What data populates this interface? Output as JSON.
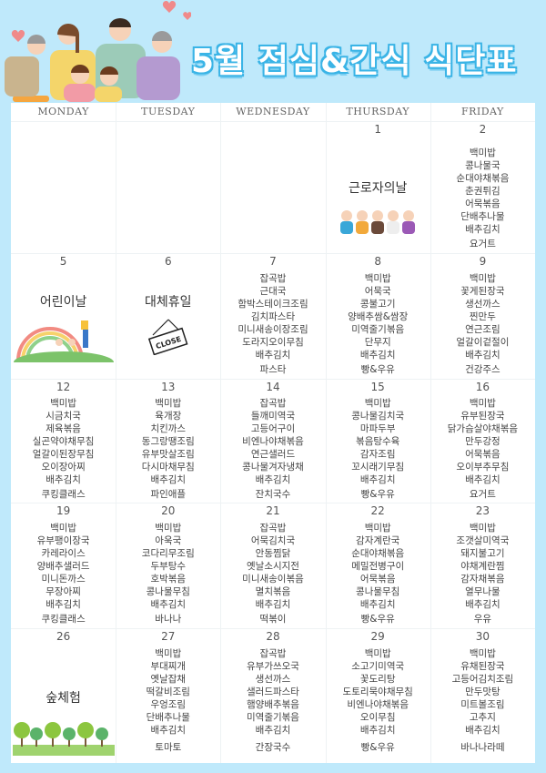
{
  "header": {
    "title": "5월 점심&간식 식단표"
  },
  "weekdays": [
    "MONDAY",
    "TUESDAY",
    "WEDNESDAY",
    "THURSDAY",
    "FRIDAY"
  ],
  "weeks": [
    {
      "days": [
        {
          "date": "",
          "menu": [],
          "snack": ""
        },
        {
          "date": "",
          "menu": [],
          "snack": ""
        },
        {
          "date": "",
          "menu": [],
          "snack": ""
        },
        {
          "date": "1",
          "holiday": "근로자의날",
          "illustration": "workers-icon"
        },
        {
          "date": "2",
          "menu": [
            "백미밥",
            "콩나물국",
            "순대야채볶음",
            "춘권튀김",
            "어묵볶음",
            "단배추나물",
            "배추김치"
          ],
          "snack": "요거트"
        }
      ]
    },
    {
      "days": [
        {
          "date": "5",
          "holiday": "어린이날",
          "illustration": "children-rainbow-icon"
        },
        {
          "date": "6",
          "holiday": "대체휴일",
          "illustration": "close-sign-icon",
          "sign_text": "CLOSE"
        },
        {
          "date": "7",
          "menu": [
            "잡곡밥",
            "근대국",
            "함박스테이크조림",
            "김치파스타",
            "미니새송이장조림",
            "도라지오이무침",
            "배추김치"
          ],
          "snack": "파스타"
        },
        {
          "date": "8",
          "menu": [
            "백미밥",
            "어묵국",
            "콩불고기",
            "양배추쌈&쌈장",
            "미역줄기볶음",
            "단무지",
            "배추김치"
          ],
          "snack": "빵&우유"
        },
        {
          "date": "9",
          "menu": [
            "백미밥",
            "꽃게된장국",
            "생선까스",
            "찐만두",
            "연근조림",
            "얼갈이겉절이",
            "배추김치"
          ],
          "snack": "건강주스"
        }
      ]
    },
    {
      "days": [
        {
          "date": "12",
          "menu": [
            "백미밥",
            "시금치국",
            "제육볶음",
            "실곤약야채무침",
            "얼갈이된장무침",
            "오이장아찌",
            "배추김치"
          ],
          "snack": "쿠킹클래스"
        },
        {
          "date": "13",
          "menu": [
            "백미밥",
            "육개장",
            "치킨까스",
            "동그랑땡조림",
            "유부맛살조림",
            "다시마채무침",
            "배추김치"
          ],
          "snack": "파인애플"
        },
        {
          "date": "14",
          "menu": [
            "잡곡밥",
            "들깨미역국",
            "고등어구이",
            "비엔나야채볶음",
            "연근샐러드",
            "콩나물겨자냉채",
            "배추김치"
          ],
          "snack": "잔치국수"
        },
        {
          "date": "15",
          "menu": [
            "백미밥",
            "콩나물김치국",
            "마파두부",
            "볶음탕수육",
            "감자조림",
            "꼬시래기무침",
            "배추김치"
          ],
          "snack": "빵&우유"
        },
        {
          "date": "16",
          "menu": [
            "백미밥",
            "유부된장국",
            "닭가슴살야채볶음",
            "만두강정",
            "어묵볶음",
            "오이부추무침",
            "배추김치"
          ],
          "snack": "요거트"
        }
      ]
    },
    {
      "days": [
        {
          "date": "19",
          "menu": [
            "백미밥",
            "유부팽이장국",
            "카레라이스",
            "양배추샐러드",
            "미니돈까스",
            "무장아찌",
            "배추김치"
          ],
          "snack": "쿠킹클래스"
        },
        {
          "date": "20",
          "menu": [
            "백미밥",
            "아욱국",
            "코다리무조림",
            "두부탕수",
            "호박볶음",
            "콩나물무침",
            "배추김치"
          ],
          "snack": "바나나"
        },
        {
          "date": "21",
          "menu": [
            "잡곡밥",
            "어묵김치국",
            "안동찜닭",
            "옛날소시지전",
            "미니새송이볶음",
            "멸치볶음",
            "배추김치"
          ],
          "snack": "떡볶이"
        },
        {
          "date": "22",
          "menu": [
            "백미밥",
            "감자계란국",
            "순대야채볶음",
            "메밀전병구이",
            "어묵볶음",
            "콩나물무침",
            "배추김치"
          ],
          "snack": "빵&우유"
        },
        {
          "date": "23",
          "menu": [
            "백미밥",
            "조갯살미역국",
            "돼지불고기",
            "야채계란찜",
            "감자채볶음",
            "열무나물",
            "배추김치"
          ],
          "snack": "우유"
        }
      ]
    },
    {
      "days": [
        {
          "date": "26",
          "holiday": "숲체험",
          "illustration": "forest-icon"
        },
        {
          "date": "27",
          "menu": [
            "백미밥",
            "부대찌개",
            "옛날잡채",
            "떡갈비조림",
            "우엉조림",
            "단배추나물",
            "배추김치"
          ],
          "snack": "토마토"
        },
        {
          "date": "28",
          "menu": [
            "잡곡밥",
            "유부가쓰오국",
            "생선까스",
            "샐러드파스타",
            "햄양배추볶음",
            "미역줄기볶음",
            "배추김치"
          ],
          "snack": "간장국수"
        },
        {
          "date": "29",
          "menu": [
            "백미밥",
            "소고기미역국",
            "꽃도리탕",
            "도토리묵야채무침",
            "비엔나야채볶음",
            "오이무침",
            "배추김치"
          ],
          "snack": "빵&우유"
        },
        {
          "date": "30",
          "menu": [
            "백미밥",
            "유채된장국",
            "고등어김치조림",
            "만두맛탕",
            "미트볼조림",
            "고추지",
            "배추김치"
          ],
          "snack": "바나나라떼"
        }
      ]
    }
  ]
}
